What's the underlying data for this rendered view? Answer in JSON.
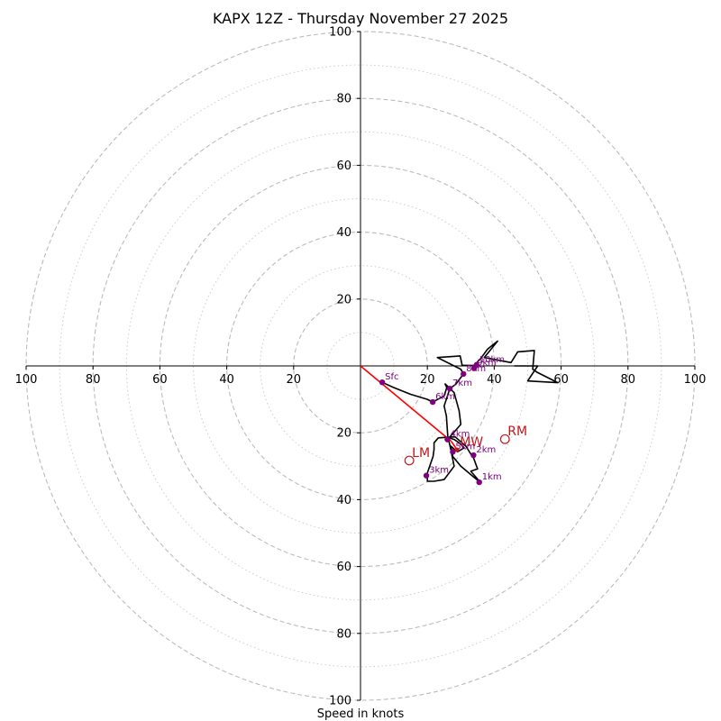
{
  "chart_data": {
    "type": "hodograph",
    "title": "KAPX 12Z - Thursday November 27 2025",
    "xlabel": "Speed in knots",
    "range_max": 100,
    "ring_major": [
      20,
      40,
      60,
      80,
      100
    ],
    "ring_minor": [
      10,
      30,
      50,
      70,
      90
    ],
    "x_ticks": [
      {
        "label": "100",
        "value": -100
      },
      {
        "label": "80",
        "value": -80
      },
      {
        "label": "60",
        "value": -60
      },
      {
        "label": "40",
        "value": -40
      },
      {
        "label": "20",
        "value": -20
      },
      {
        "label": "20",
        "value": 20
      },
      {
        "label": "40",
        "value": 40
      },
      {
        "label": "60",
        "value": 60
      },
      {
        "label": "80",
        "value": 80
      },
      {
        "label": "100",
        "value": 100
      }
    ],
    "y_ticks": [
      {
        "label": "100",
        "value": 100
      },
      {
        "label": "80",
        "value": 80
      },
      {
        "label": "60",
        "value": 60
      },
      {
        "label": "40",
        "value": 40
      },
      {
        "label": "20",
        "value": 20
      },
      {
        "label": "20",
        "value": -20
      },
      {
        "label": "40",
        "value": -40
      },
      {
        "label": "60",
        "value": -60
      },
      {
        "label": "80",
        "value": -80
      },
      {
        "label": "100",
        "value": -100
      }
    ],
    "trace": {
      "color": "#000000",
      "points": [
        [
          6.5,
          -4.9
        ],
        [
          10,
          -6.5
        ],
        [
          15,
          -8.5
        ],
        [
          20,
          -10
        ],
        [
          21.6,
          -10.8
        ],
        [
          25,
          -9
        ],
        [
          25.8,
          -6.5
        ],
        [
          25.3,
          -5.4
        ],
        [
          27,
          -7
        ],
        [
          28,
          -8
        ],
        [
          29.5,
          -13.4
        ],
        [
          30,
          -17.5
        ],
        [
          26.5,
          -21.5
        ],
        [
          28,
          -22
        ],
        [
          29.5,
          -23
        ],
        [
          31,
          -24.5
        ],
        [
          29,
          -25.7
        ],
        [
          27,
          -24
        ],
        [
          27.6,
          -27.1
        ],
        [
          30,
          -30
        ],
        [
          33,
          -32.5
        ],
        [
          36,
          -35
        ],
        [
          33,
          -31.5
        ],
        [
          35,
          -30.8
        ],
        [
          33.8,
          -27.5
        ],
        [
          33.2,
          -26.7
        ],
        [
          31.5,
          -24
        ],
        [
          28.3,
          -21.2
        ],
        [
          23.3,
          -21.5
        ],
        [
          22,
          -23
        ],
        [
          22,
          -25
        ],
        [
          21.7,
          -27.1
        ],
        [
          20,
          -32
        ],
        [
          20,
          -34.5
        ],
        [
          22,
          -34.5
        ],
        [
          25,
          -34
        ],
        [
          28,
          -30
        ],
        [
          27,
          -25
        ],
        [
          26.1,
          -20.9
        ],
        [
          25.7,
          -15
        ],
        [
          25,
          -12
        ],
        [
          26.7,
          -6.8
        ],
        [
          28.5,
          -5.5
        ],
        [
          30.8,
          -2.4
        ],
        [
          30,
          -1
        ],
        [
          23,
          2.5
        ],
        [
          29.8,
          3
        ],
        [
          30.4,
          0.2
        ],
        [
          34,
          0.1
        ],
        [
          36,
          2.3
        ],
        [
          38,
          5
        ],
        [
          41,
          7.4
        ],
        [
          37,
          2.5
        ],
        [
          45,
          1
        ],
        [
          47,
          4.2
        ],
        [
          52,
          4.6
        ],
        [
          51.5,
          -1
        ],
        [
          53,
          -2
        ],
        [
          56,
          -3.5
        ],
        [
          59,
          -5
        ],
        [
          50,
          -4.5
        ],
        [
          53,
          0
        ],
        [
          46,
          0
        ]
      ]
    },
    "height_markers": [
      {
        "label": "Sfc",
        "u": 6.5,
        "v": -4.9
      },
      {
        "label": "1km",
        "u": 35.5,
        "v": -34.8
      },
      {
        "label": "2km",
        "u": 33.8,
        "v": -26.7
      },
      {
        "label": "3km",
        "u": 19.7,
        "v": -32.8
      },
      {
        "label": "4km",
        "u": 26,
        "v": -22
      },
      {
        "label": "5km",
        "u": 27.6,
        "v": -25.7
      },
      {
        "label": "6km",
        "u": 21.6,
        "v": -10.8
      },
      {
        "label": "7km",
        "u": 26.7,
        "v": -6.8
      },
      {
        "label": "8km",
        "u": 30.8,
        "v": -2.4
      },
      {
        "label": "9km",
        "u": 34,
        "v": -0.7
      },
      {
        "label": "10km",
        "u": 34.7,
        "v": 0.3
      }
    ],
    "storm_motion": {
      "color": "#c0181c",
      "rm": {
        "label": "RM",
        "u": 43.2,
        "v": -21.9
      },
      "lm": {
        "label": "LM",
        "u": 14.6,
        "v": -28.3
      },
      "mw": {
        "label": "MW",
        "u": 28.9,
        "v": -25.1
      },
      "mean_vector": {
        "u": 27.1,
        "v": -22.5
      }
    },
    "colors": {
      "ring": "#bbbbbb",
      "ring_minor": "#cccccc",
      "axis": "#000000",
      "height_marker": "#800080",
      "storm_line": "#ff0000"
    }
  }
}
